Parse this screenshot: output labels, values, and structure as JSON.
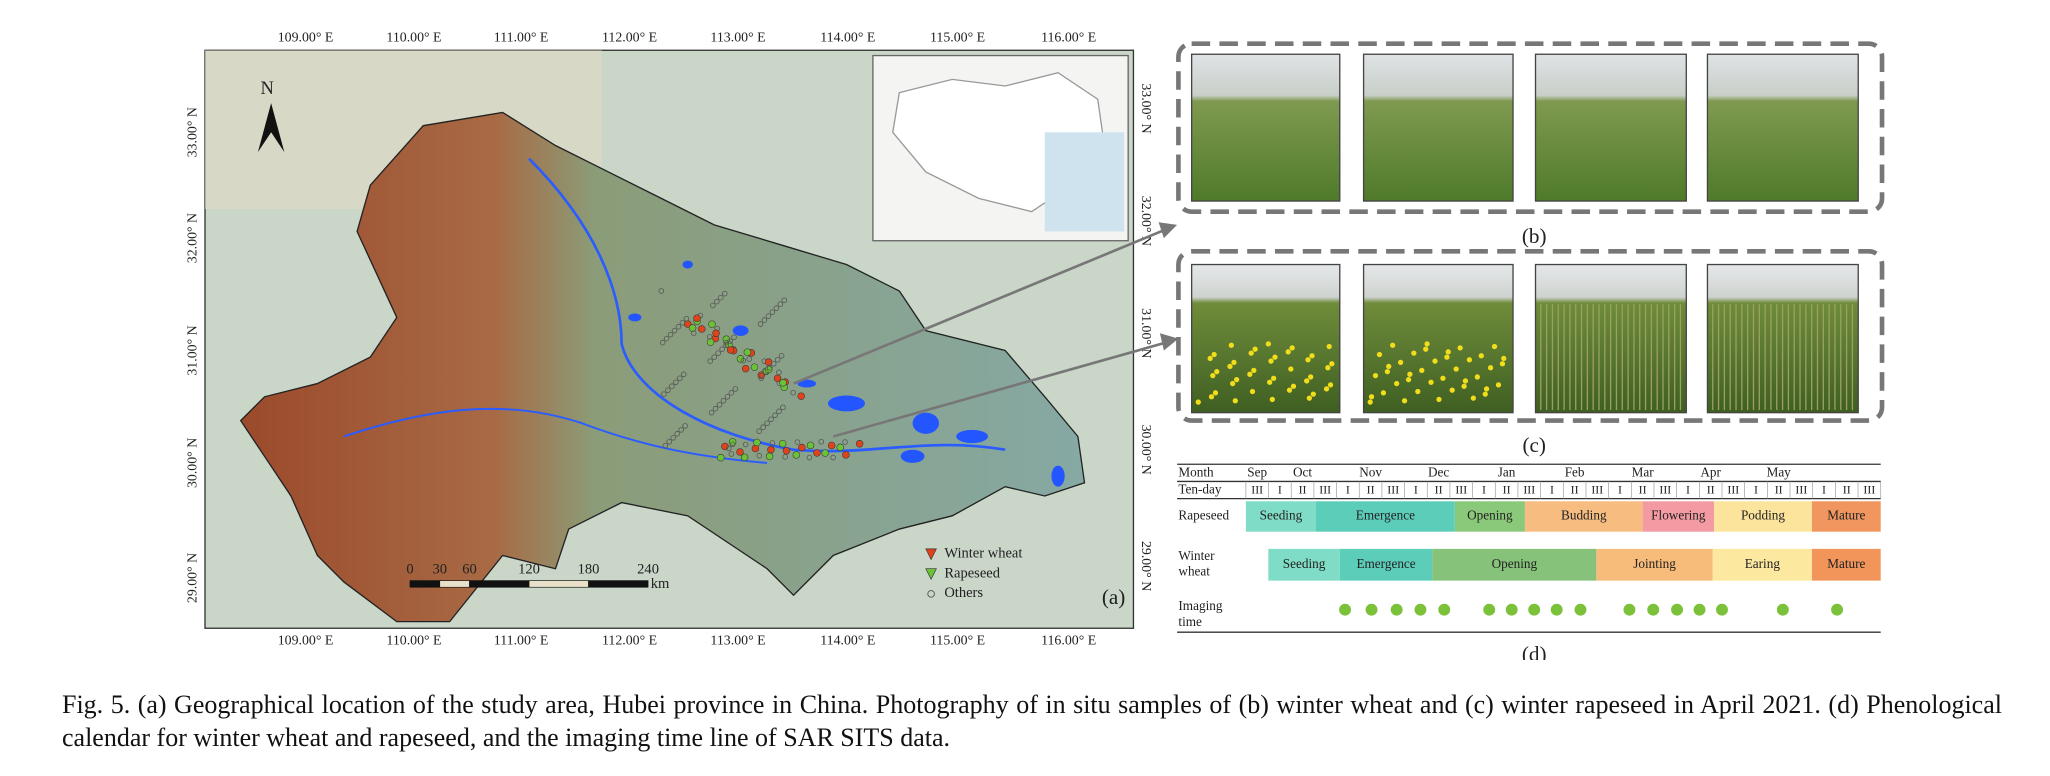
{
  "panel_a": {
    "label": "(a)",
    "north": "N",
    "lon_labels_top": [
      "109.00° E",
      "110.00° E",
      "111.00° E",
      "112.00° E",
      "113.00° E",
      "114.00° E",
      "115.00° E",
      "116.00° E"
    ],
    "lon_labels_bottom": [
      "109.00° E",
      "110.00° E",
      "111.00° E",
      "112.00° E",
      "113.00° E",
      "114.00° E",
      "115.00° E",
      "116.00° E"
    ],
    "lat_labels_left": [
      "33.00° N",
      "32.00° N",
      "31.00° N",
      "30.00° N",
      "29.00° N"
    ],
    "lat_labels_right": [
      "33.00° N",
      "32.00° N",
      "31.00° N",
      "30.00° N",
      "29.00° N"
    ],
    "scale_bar": {
      "ticks": [
        0,
        30,
        60,
        120,
        180,
        240
      ],
      "unit": "km"
    },
    "legend": [
      "Winter wheat",
      "Rapeseed",
      "Others"
    ]
  },
  "panel_b": {
    "label": "(b)"
  },
  "panel_c": {
    "label": "(c)"
  },
  "panel_d": {
    "label": "(d)",
    "month_label": "Month",
    "months": [
      "Sep",
      "Oct",
      "Nov",
      "Dec",
      "Jan",
      "Feb",
      "Mar",
      "Apr",
      "May"
    ],
    "tenday_label": "Ten-day",
    "tendays": [
      "III",
      "I",
      "II",
      "III",
      "I",
      "II",
      "III",
      "I",
      "II",
      "III",
      "I",
      "II",
      "III",
      "I",
      "II",
      "III",
      "I",
      "II",
      "III",
      "I",
      "II",
      "III",
      "I",
      "II",
      "III",
      "I",
      "II",
      "III"
    ],
    "rows": [
      {
        "label": "Rapeseed",
        "stages": [
          "Seeding",
          "Emergence",
          "Opening",
          "Budding",
          "Flowering",
          "Podding",
          "Mature"
        ]
      },
      {
        "label": "Winter wheat",
        "stages": [
          "Seeding",
          "Emergence",
          "Opening",
          "Jointing",
          "Earing",
          "Mature"
        ]
      }
    ],
    "imaging_label": "Imaging time"
  },
  "caption": "Fig. 5.   (a) Geographical location of the study area, Hubei province in China. Photography of in situ samples of (b) winter wheat and (c) winter rapeseed in April 2021. (d) Phenological calendar for winter wheat and rapeseed, and the imaging time line of SAR SITS data."
}
